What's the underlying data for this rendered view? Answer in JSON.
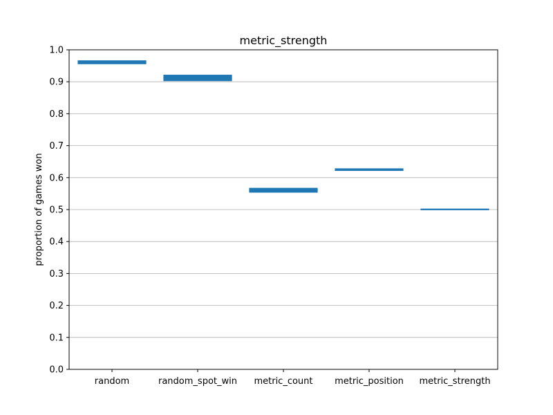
{
  "chart_data": {
    "type": "bar",
    "title": "metric_strength",
    "xlabel": "",
    "ylabel": "proportion of games won",
    "ylim": [
      0.0,
      1.0
    ],
    "yticks": [
      "0.0",
      "0.1",
      "0.2",
      "0.3",
      "0.4",
      "0.5",
      "0.6",
      "0.7",
      "0.8",
      "0.9",
      "1.0"
    ],
    "grid": "horizontal",
    "categories": [
      "random",
      "random_spot_win",
      "metric_count",
      "metric_position",
      "metric_strength"
    ],
    "ranges": [
      {
        "low": 0.955,
        "high": 0.967
      },
      {
        "low": 0.902,
        "high": 0.922
      },
      {
        "low": 0.553,
        "high": 0.568
      },
      {
        "low": 0.621,
        "high": 0.629
      },
      {
        "low": 0.498,
        "high": 0.503
      }
    ],
    "bar_color": "#1f77b4"
  }
}
